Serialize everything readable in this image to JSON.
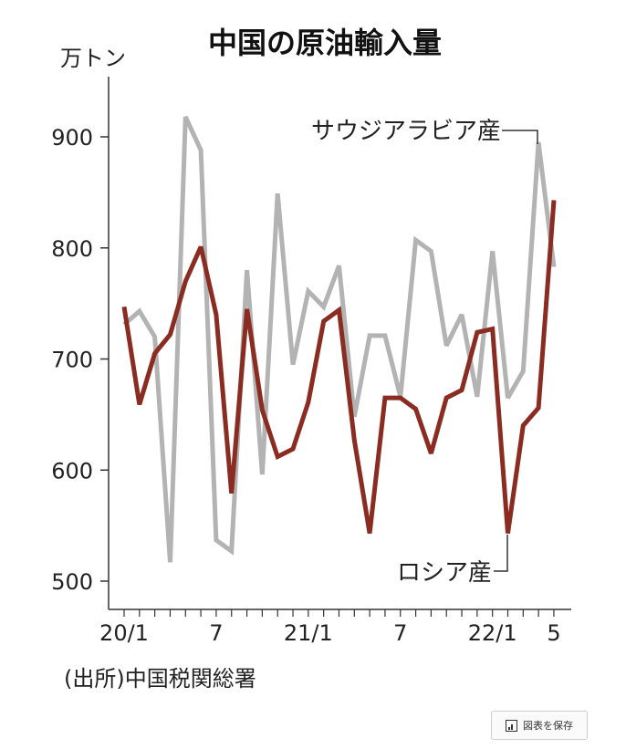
{
  "chart_data": {
    "type": "line",
    "title": "中国の原油輸入量",
    "ylabel": "万トン",
    "source": "(出所)中国税関総署",
    "ylim": [
      490,
      960
    ],
    "yticks": [
      500,
      600,
      700,
      800,
      900
    ],
    "xtick_labels": [
      {
        "index": 0,
        "label": "20/1"
      },
      {
        "index": 6,
        "label": "7"
      },
      {
        "index": 12,
        "label": "21/1"
      },
      {
        "index": 18,
        "label": "7"
      },
      {
        "index": 24,
        "label": "22/1"
      },
      {
        "index": 28,
        "label": "5"
      }
    ],
    "x": [
      "2020-01",
      "2020-02",
      "2020-03",
      "2020-04",
      "2020-05",
      "2020-06",
      "2020-07",
      "2020-08",
      "2020-09",
      "2020-10",
      "2020-11",
      "2020-12",
      "2021-01",
      "2021-02",
      "2021-03",
      "2021-04",
      "2021-05",
      "2021-06",
      "2021-07",
      "2021-08",
      "2021-09",
      "2021-10",
      "2021-11",
      "2021-12",
      "2022-01",
      "2022-02",
      "2022-03",
      "2022-04",
      "2022-05"
    ],
    "series": [
      {
        "name": "サウジアラビア産",
        "color": "#b3b3b3",
        "values": [
          731,
          743,
          720,
          517,
          918,
          888,
          537,
          527,
          780,
          596,
          849,
          695,
          761,
          747,
          784,
          648,
          721,
          721,
          666,
          807,
          797,
          712,
          740,
          666,
          797,
          665,
          689,
          895,
          783
        ]
      },
      {
        "name": "ロシア産",
        "color": "#8b2c22",
        "values": [
          747,
          659,
          705,
          722,
          770,
          801,
          740,
          579,
          745,
          654,
          612,
          619,
          661,
          734,
          744,
          627,
          543,
          665,
          665,
          655,
          615,
          665,
          672,
          724,
          727,
          543,
          640,
          656,
          843
        ]
      }
    ]
  },
  "ui": {
    "save_label": "図表を保存"
  }
}
